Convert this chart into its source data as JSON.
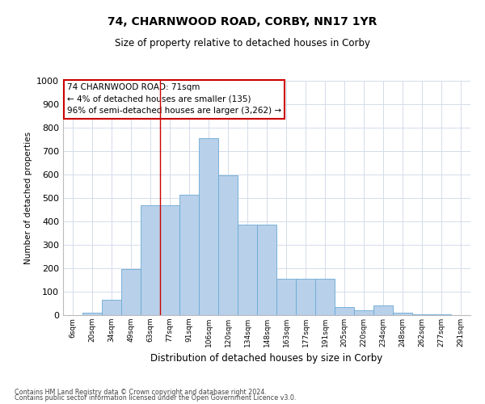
{
  "title": "74, CHARNWOOD ROAD, CORBY, NN17 1YR",
  "subtitle": "Size of property relative to detached houses in Corby",
  "xlabel": "Distribution of detached houses by size in Corby",
  "ylabel": "Number of detached properties",
  "categories": [
    "6sqm",
    "20sqm",
    "34sqm",
    "49sqm",
    "63sqm",
    "77sqm",
    "91sqm",
    "106sqm",
    "120sqm",
    "134sqm",
    "148sqm",
    "163sqm",
    "177sqm",
    "191sqm",
    "205sqm",
    "220sqm",
    "234sqm",
    "248sqm",
    "262sqm",
    "277sqm",
    "291sqm"
  ],
  "values": [
    0,
    10,
    65,
    195,
    470,
    470,
    515,
    755,
    595,
    385,
    385,
    155,
    155,
    155,
    35,
    20,
    40,
    10,
    5,
    2,
    0
  ],
  "bar_color": "#b8d0ea",
  "bar_edge_color": "#6aaad4",
  "annotation_text": "74 CHARNWOOD ROAD: 71sqm\n← 4% of detached houses are smaller (135)\n96% of semi-detached houses are larger (3,262) →",
  "annotation_box_color": "#ffffff",
  "annotation_box_edge": "#cc0000",
  "vline_color": "#cc0000",
  "vline_x": 4.5,
  "ylim": [
    0,
    1000
  ],
  "yticks": [
    0,
    100,
    200,
    300,
    400,
    500,
    600,
    700,
    800,
    900,
    1000
  ],
  "footnote1": "Contains HM Land Registry data © Crown copyright and database right 2024.",
  "footnote2": "Contains public sector information licensed under the Open Government Licence v3.0.",
  "bg_color": "#ffffff",
  "grid_color": "#d4dcea"
}
